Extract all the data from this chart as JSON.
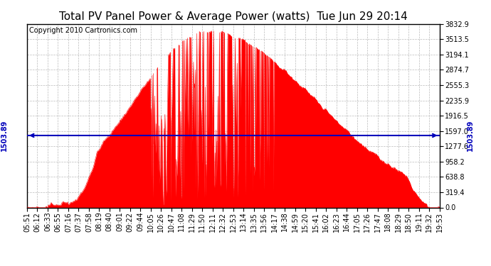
{
  "title": "Total PV Panel Power & Average Power (watts)  Tue Jun 29 20:14",
  "copyright": "Copyright 2010 Cartronics.com",
  "average_power": 1503.89,
  "y_max": 3832.9,
  "y_ticks": [
    0.0,
    319.4,
    638.8,
    958.2,
    1277.6,
    1597.0,
    1916.5,
    2235.9,
    2555.3,
    2874.7,
    3194.1,
    3513.5,
    3832.9
  ],
  "fill_color": "#FF0000",
  "avg_line_color": "#0000BB",
  "background_color": "#FFFFFF",
  "grid_color": "#BBBBBB",
  "title_fontsize": 11,
  "copyright_fontsize": 7,
  "tick_fontsize": 7,
  "avg_label_fontsize": 7,
  "x_tick_labels": [
    "05:51",
    "06:12",
    "06:33",
    "06:55",
    "07:16",
    "07:37",
    "07:58",
    "08:19",
    "08:40",
    "09:01",
    "09:22",
    "09:44",
    "10:05",
    "10:26",
    "10:47",
    "11:08",
    "11:29",
    "11:50",
    "12:11",
    "12:32",
    "12:53",
    "13:14",
    "13:35",
    "13:56",
    "14:17",
    "14:38",
    "14:59",
    "15:20",
    "15:41",
    "16:02",
    "16:23",
    "16:44",
    "17:05",
    "17:26",
    "17:47",
    "18:08",
    "18:29",
    "18:50",
    "19:11",
    "19:32",
    "19:53"
  ]
}
